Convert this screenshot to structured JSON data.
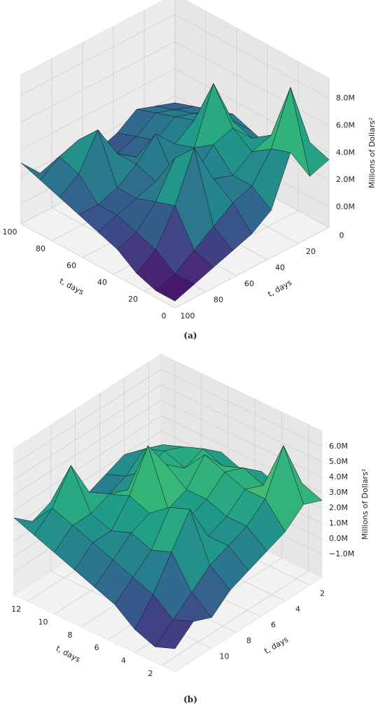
{
  "chart_data": [
    {
      "type": "surface3d",
      "panel_label": "(a)",
      "xlabel": "t, days",
      "ylabel": "t, days",
      "zlabel": "Millions of Dollars²",
      "colormap": "viridis",
      "x": [
        0,
        12.5,
        25,
        37.5,
        50,
        62.5,
        75,
        87.5,
        100
      ],
      "y": [
        0,
        12.5,
        25,
        37.5,
        50,
        62.5,
        75,
        87.5,
        100
      ],
      "z": [
        [
          3.5,
          3.0,
          5.5,
          2.0,
          1.0,
          0.5,
          0.0,
          -0.5,
          -1.0
        ],
        [
          4.0,
          8.8,
          5.0,
          3.0,
          2.5,
          1.5,
          0.5,
          -0.5,
          -1.0
        ],
        [
          2.5,
          4.5,
          4.0,
          3.0,
          3.5,
          6.5,
          3.0,
          0.5,
          -0.5
        ],
        [
          2.0,
          3.5,
          5.0,
          4.5,
          3.0,
          5.0,
          2.5,
          1.0,
          0.5
        ],
        [
          2.5,
          4.0,
          7.5,
          3.5,
          2.0,
          2.5,
          2.0,
          1.5,
          1.0
        ],
        [
          3.0,
          3.5,
          4.0,
          3.0,
          4.5,
          3.0,
          2.0,
          1.5,
          1.5
        ],
        [
          2.5,
          3.0,
          3.5,
          2.5,
          2.0,
          3.0,
          5.5,
          3.0,
          2.0
        ],
        [
          2.0,
          2.5,
          3.0,
          2.0,
          1.5,
          2.5,
          4.0,
          3.5,
          2.5
        ],
        [
          1.5,
          2.0,
          2.5,
          1.5,
          1.0,
          1.0,
          2.0,
          1.5,
          3.0
        ]
      ],
      "xlim": [
        0,
        100
      ],
      "ylim": [
        0,
        100
      ],
      "zlim": [
        -1.5,
        9.5
      ],
      "xticks": [
        0,
        20,
        40,
        60,
        80,
        100
      ],
      "yticks": [
        0,
        20,
        40,
        60,
        80,
        100
      ],
      "zticks": [
        {
          "value": 0,
          "label": "0.0M"
        },
        {
          "value": 2,
          "label": "2.0M"
        },
        {
          "value": 4,
          "label": "4.0M"
        },
        {
          "value": 6,
          "label": "6.0M"
        },
        {
          "value": 8,
          "label": "8.0M"
        }
      ]
    },
    {
      "type": "surface3d",
      "panel_label": "(b)",
      "xlabel": "t, days",
      "ylabel": "t, days",
      "zlabel": "Millions of Dollars²",
      "colormap": "viridis",
      "x": [
        1,
        2.5,
        4,
        5.5,
        7,
        8.5,
        10,
        11.5,
        13
      ],
      "y": [
        1,
        2.5,
        4,
        5.5,
        7,
        8.5,
        10,
        11.5,
        13
      ],
      "z": [
        [
          2.5,
          3.0,
          2.0,
          1.5,
          1.0,
          0.5,
          -0.5,
          0.0,
          -1.0
        ],
        [
          3.0,
          6.2,
          3.5,
          2.5,
          2.0,
          1.5,
          0.5,
          -0.5,
          -1.5
        ],
        [
          2.0,
          3.0,
          3.5,
          2.5,
          2.0,
          4.5,
          2.5,
          0.5,
          -1.0
        ],
        [
          2.5,
          3.5,
          4.0,
          3.0,
          2.5,
          4.0,
          2.0,
          1.0,
          0.0
        ],
        [
          2.0,
          3.0,
          4.5,
          3.0,
          2.5,
          3.0,
          2.5,
          1.5,
          0.5
        ],
        [
          2.5,
          3.5,
          3.0,
          4.0,
          6.0,
          3.5,
          2.0,
          2.0,
          1.0
        ],
        [
          2.0,
          3.0,
          3.5,
          3.0,
          2.5,
          3.0,
          2.5,
          2.5,
          1.5
        ],
        [
          1.5,
          2.5,
          3.0,
          2.0,
          1.5,
          2.5,
          5.0,
          3.0,
          2.0
        ],
        [
          1.0,
          1.5,
          2.0,
          1.5,
          1.0,
          1.0,
          2.0,
          1.5,
          2.5
        ]
      ],
      "xlim": [
        1,
        13
      ],
      "ylim": [
        1,
        13
      ],
      "zlim": [
        -2.5,
        7
      ],
      "xticks": [
        2,
        4,
        6,
        8,
        10,
        12
      ],
      "yticks": [
        2,
        4,
        6,
        8,
        10
      ],
      "zticks": [
        {
          "value": -1,
          "label": "−1.0M"
        },
        {
          "value": 0,
          "label": "0.0M"
        },
        {
          "value": 1,
          "label": "1.0M"
        },
        {
          "value": 2,
          "label": "2.0M"
        },
        {
          "value": 3,
          "label": "3.0M"
        },
        {
          "value": 4,
          "label": "4.0M"
        },
        {
          "value": 5,
          "label": "5.0M"
        },
        {
          "value": 6,
          "label": "6.0M"
        }
      ]
    }
  ]
}
